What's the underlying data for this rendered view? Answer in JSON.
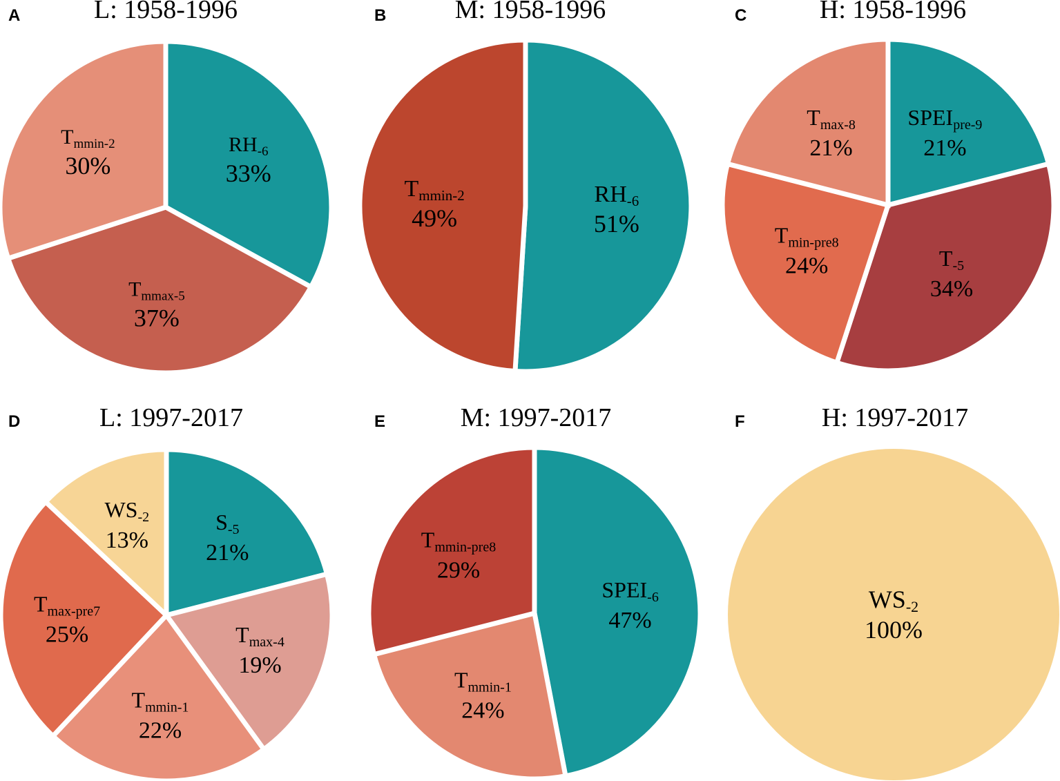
{
  "chart_data": [
    {
      "type": "pie",
      "panel": "A",
      "title": "L: 1958-1996",
      "slices": [
        {
          "base": "RH",
          "sub": "-6",
          "pct": 33,
          "label": "33%",
          "color": "#17979A"
        },
        {
          "base": "T",
          "sub": "mmax-5",
          "pct": 37,
          "label": "37%",
          "color": "#C55F4F"
        },
        {
          "base": "T",
          "sub": "mmin-2",
          "pct": 30,
          "label": "30%",
          "color": "#E58F78"
        }
      ]
    },
    {
      "type": "pie",
      "panel": "B",
      "title": "M: 1958-1996",
      "slices": [
        {
          "base": "RH",
          "sub": "-6",
          "pct": 51,
          "label": "51%",
          "color": "#17979A"
        },
        {
          "base": "T",
          "sub": "mmin-2",
          "pct": 49,
          "label": "49%",
          "color": "#BC462E"
        }
      ]
    },
    {
      "type": "pie",
      "panel": "C",
      "title": "H: 1958-1996",
      "slices": [
        {
          "base": "SPEI",
          "sub": "pre-9",
          "pct": 21,
          "label": "21%",
          "color": "#17979A"
        },
        {
          "base": "T",
          "sub": "-5",
          "pct": 34,
          "label": "34%",
          "color": "#A73E40"
        },
        {
          "base": "T",
          "sub": "min-pre8",
          "pct": 24,
          "label": "24%",
          "color": "#E16B4E"
        },
        {
          "base": "T",
          "sub": "max-8",
          "pct": 21,
          "label": "21%",
          "color": "#E38870"
        }
      ]
    },
    {
      "type": "pie",
      "panel": "D",
      "title": "L: 1997-2017",
      "slices": [
        {
          "base": "S",
          "sub": "-5",
          "pct": 21,
          "label": "21%",
          "color": "#17979A"
        },
        {
          "base": "T",
          "sub": "max-4",
          "pct": 19,
          "label": "19%",
          "color": "#DE9D93"
        },
        {
          "base": "T",
          "sub": "mmin-1",
          "pct": 22,
          "label": "22%",
          "color": "#E8907A"
        },
        {
          "base": "T",
          "sub": "max-pre7",
          "pct": 25,
          "label": "25%",
          "color": "#E06A4D"
        },
        {
          "base": "WS",
          "sub": "-2",
          "pct": 13,
          "label": "13%",
          "color": "#F7D596"
        }
      ]
    },
    {
      "type": "pie",
      "panel": "E",
      "title": "M: 1997-2017",
      "slices": [
        {
          "base": "SPEI",
          "sub": "-6",
          "pct": 47,
          "label": "47%",
          "color": "#17979A"
        },
        {
          "base": "T",
          "sub": "mmin-1",
          "pct": 24,
          "label": "24%",
          "color": "#E38870"
        },
        {
          "base": "T",
          "sub": "mmin-pre8",
          "pct": 29,
          "label": "29%",
          "color": "#BC4236"
        }
      ]
    },
    {
      "type": "pie",
      "panel": "F",
      "title": "H: 1997-2017",
      "slices": [
        {
          "base": "WS",
          "sub": "-2",
          "pct": 100,
          "label": "100%",
          "color": "#F7D492"
        }
      ]
    }
  ]
}
